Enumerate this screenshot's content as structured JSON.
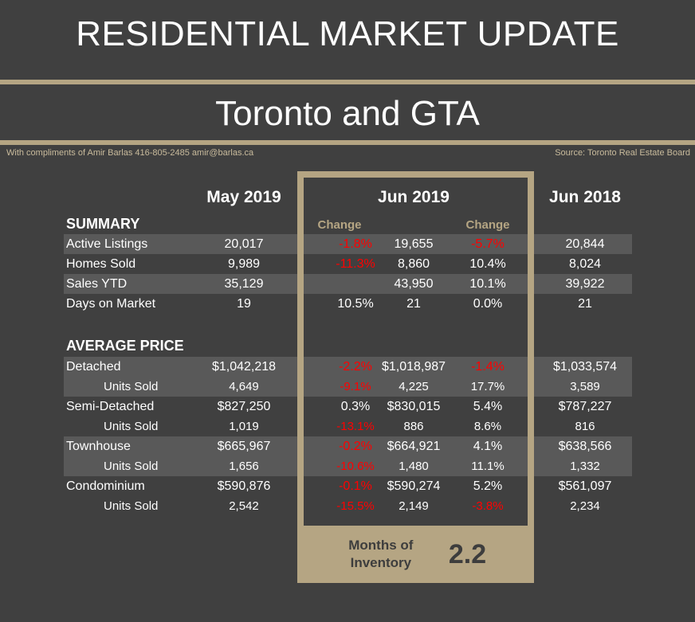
{
  "title": "RESIDENTIAL MARKET UPDATE",
  "subtitle": "Toronto and GTA",
  "credit": "With compliments of Amir Barlas 416-805-2485 amir@barlas.ca",
  "source": "Source: Toronto Real Estate Board",
  "columns": {
    "may": "May 2019",
    "jun": "Jun 2019",
    "jun18": "Jun 2018",
    "change": "Change"
  },
  "summary_label": "SUMMARY",
  "price_label": "AVERAGE PRICE",
  "summary": [
    {
      "label": "Active Listings",
      "may": "20,017",
      "c1": "-1.8%",
      "jun": "19,655",
      "c2": "-5.7%",
      "jun18": "20,844"
    },
    {
      "label": "Homes Sold",
      "may": "9,989",
      "c1": "-11.3%",
      "jun": "8,860",
      "c2": "10.4%",
      "jun18": "8,024"
    },
    {
      "label": "Sales YTD",
      "may": "35,129",
      "c1": "",
      "jun": "43,950",
      "c2": "10.1%",
      "jun18": "39,922"
    },
    {
      "label": "Days on Market",
      "may": "19",
      "c1": "10.5%",
      "jun": "21",
      "c2": "0.0%",
      "jun18": "21"
    }
  ],
  "prices": [
    {
      "label": "Detached",
      "may": "$1,042,218",
      "c1": "-2.2%",
      "jun": "$1,018,987",
      "c2": "-1.4%",
      "jun18": "$1,033,574"
    },
    {
      "label": "Units Sold",
      "may": "4,649",
      "c1": "-9.1%",
      "jun": "4,225",
      "c2": "17.7%",
      "jun18": "3,589"
    },
    {
      "label": "Semi-Detached",
      "may": "$827,250",
      "c1": "0.3%",
      "jun": "$830,015",
      "c2": "5.4%",
      "jun18": "$787,227"
    },
    {
      "label": "Units Sold",
      "may": "1,019",
      "c1": "-13.1%",
      "jun": "886",
      "c2": "8.6%",
      "jun18": "816"
    },
    {
      "label": "Townhouse",
      "may": "$665,967",
      "c1": "-0.2%",
      "jun": "$664,921",
      "c2": "4.1%",
      "jun18": "$638,566"
    },
    {
      "label": "Units Sold",
      "may": "1,656",
      "c1": "-10.6%",
      "jun": "1,480",
      "c2": "11.1%",
      "jun18": "1,332"
    },
    {
      "label": "Condominium",
      "may": "$590,876",
      "c1": "-0.1%",
      "jun": "$590,274",
      "c2": "5.2%",
      "jun18": "$561,097"
    },
    {
      "label": "Units Sold",
      "may": "2,542",
      "c1": "-15.5%",
      "jun": "2,149",
      "c2": "-3.8%",
      "jun18": "2,234"
    }
  ],
  "inventory": {
    "label": "Months of Inventory",
    "value": "2.2"
  },
  "colors": {
    "background": "#404040",
    "stripe": "#595959",
    "gold": "#b5a583",
    "negative": "#ff0000"
  }
}
